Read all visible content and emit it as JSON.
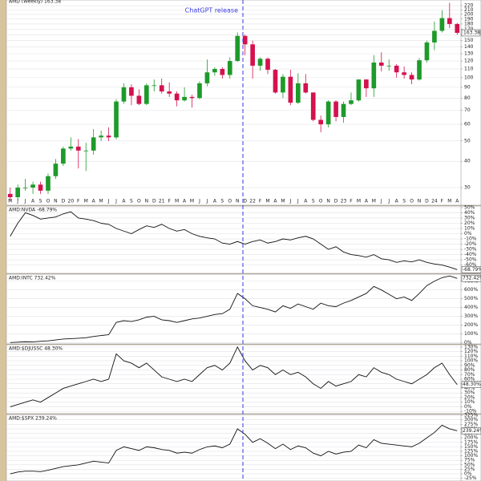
{
  "chart_data": [
    {
      "type": "candlestick",
      "title": "AMD (Weekly) 163.38",
      "annotation": "ChatGPT release",
      "categories": [
        "M",
        "J",
        "J",
        "A",
        "S",
        "O",
        "N",
        "D",
        "20",
        "F",
        "M",
        "A",
        "M",
        "J",
        "J",
        "A",
        "S",
        "O",
        "N",
        "D",
        "21",
        "F",
        "M",
        "A",
        "M",
        "J",
        "J",
        "A",
        "S",
        "O",
        "N",
        "D",
        "22",
        "F",
        "M",
        "A",
        "M",
        "J",
        "J",
        "A",
        "S",
        "O",
        "N",
        "D",
        "23",
        "F",
        "M",
        "A",
        "M",
        "J",
        "J",
        "A",
        "S",
        "O",
        "N",
        "D",
        "24",
        "F",
        "M",
        "A"
      ],
      "open": [
        28,
        27,
        30,
        30,
        31,
        29,
        34,
        39,
        46,
        47,
        45,
        45,
        52,
        53,
        52,
        77,
        90,
        82,
        75,
        92,
        92,
        86,
        84,
        78,
        81,
        80,
        94,
        106,
        110,
        103,
        120,
        158,
        144,
        114,
        123,
        109,
        85,
        101,
        76,
        94,
        85,
        63,
        60,
        77,
        65,
        75,
        78,
        98,
        89,
        118,
        114,
        114,
        106,
        103,
        98,
        121,
        147,
        167,
        192,
        180
      ],
      "high": [
        30,
        31,
        33,
        32,
        32,
        35,
        41,
        47,
        52,
        51,
        49,
        57,
        56,
        58,
        79,
        94,
        93,
        88,
        94,
        98,
        99,
        95,
        86,
        90,
        83,
        96,
        122,
        112,
        112,
        125,
        164,
        160,
        150,
        125,
        125,
        110,
        104,
        109,
        105,
        104,
        85,
        66,
        78,
        78,
        77,
        85,
        98,
        98,
        128,
        132,
        122,
        116,
        113,
        106,
        124,
        150,
        185,
        209,
        227,
        182
      ],
      "low": [
        26,
        26,
        29,
        28,
        28,
        28,
        33,
        38,
        45,
        37,
        36,
        43,
        50,
        50,
        51,
        75,
        74,
        74,
        74,
        86,
        84,
        81,
        73,
        77,
        72,
        79,
        91,
        102,
        99,
        99,
        119,
        128,
        99,
        108,
        104,
        84,
        80,
        74,
        75,
        84,
        62,
        55,
        58,
        62,
        61,
        74,
        77,
        81,
        81,
        107,
        108,
        100,
        99,
        93,
        97,
        118,
        135,
        164,
        172,
        160
      ],
      "close": [
        27,
        30,
        30,
        31,
        29,
        34,
        39,
        46,
        47,
        45,
        45,
        52,
        53,
        52,
        77,
        90,
        82,
        75,
        92,
        92,
        86,
        84,
        78,
        81,
        80,
        94,
        106,
        110,
        103,
        120,
        158,
        144,
        114,
        123,
        109,
        85,
        101,
        76,
        94,
        85,
        63,
        60,
        77,
        65,
        75,
        78,
        98,
        89,
        118,
        114,
        114,
        106,
        103,
        98,
        121,
        147,
        167,
        192,
        180,
        163.38
      ],
      "up_color": "#1e9a2a",
      "down_color": "#d4124e",
      "log_scale": true,
      "grid": true,
      "ylim": [
        27,
        228
      ],
      "yticks": [
        30,
        40,
        50,
        60,
        70,
        80,
        90,
        100,
        110,
        120,
        130,
        140,
        150,
        160,
        170,
        180,
        190,
        200,
        210,
        220
      ]
    },
    {
      "type": "line",
      "title": "AMD:NVDA -68.79%",
      "color": "#111111",
      "grid": true,
      "values": [
        -5,
        20,
        40,
        35,
        28,
        30,
        32,
        38,
        42,
        30,
        28,
        25,
        20,
        18,
        10,
        5,
        0,
        8,
        15,
        12,
        18,
        10,
        5,
        8,
        0,
        -5,
        -8,
        -10,
        -18,
        -20,
        -15,
        -20,
        -15,
        -12,
        -18,
        -15,
        -10,
        -12,
        -8,
        -5,
        -10,
        -20,
        -30,
        -25,
        -35,
        -40,
        -42,
        -45,
        -40,
        -48,
        -50,
        -55,
        -52,
        -54,
        -50,
        -55,
        -58,
        -60,
        -64,
        -68.79
      ],
      "value_labels": [
        null,
        null,
        null,
        null,
        null,
        null,
        null,
        null,
        null,
        null,
        null,
        null,
        null,
        null,
        null,
        null,
        null,
        null,
        null,
        null,
        null,
        null,
        null,
        null,
        null,
        null,
        null,
        null,
        null,
        null,
        null,
        null,
        null,
        null,
        null,
        null,
        null,
        null,
        null,
        null,
        null,
        null,
        null,
        null,
        null,
        null,
        null,
        null,
        null,
        null,
        null,
        null,
        null,
        null,
        null,
        null,
        null,
        null,
        null,
        "-68.79%"
      ],
      "ylim": [
        -76,
        53
      ],
      "yticks": [
        {
          "value": 50,
          "label": "50%"
        },
        {
          "value": 40,
          "label": "40%"
        },
        {
          "value": 30,
          "label": "30%"
        },
        {
          "value": 20,
          "label": "20%"
        },
        {
          "value": 10,
          "label": "10%"
        },
        {
          "value": 0,
          "label": "0%"
        },
        {
          "value": -10,
          "label": "-10%"
        },
        {
          "value": -20,
          "label": "-20%"
        },
        {
          "value": -30,
          "label": "-30%"
        },
        {
          "value": -40,
          "label": "-40%"
        },
        {
          "value": -50,
          "label": "-50%"
        },
        {
          "value": -60,
          "label": "-60%"
        }
      ]
    },
    {
      "type": "line",
      "title": "AMD:INTC 732.42%",
      "color": "#111111",
      "grid": true,
      "values": [
        0,
        5,
        10,
        8,
        15,
        20,
        30,
        40,
        45,
        50,
        55,
        70,
        80,
        90,
        230,
        250,
        240,
        260,
        290,
        300,
        260,
        250,
        230,
        250,
        270,
        280,
        300,
        320,
        330,
        380,
        560,
        500,
        420,
        400,
        380,
        350,
        420,
        390,
        440,
        410,
        380,
        450,
        420,
        410,
        450,
        480,
        520,
        560,
        640,
        600,
        550,
        500,
        520,
        480,
        560,
        650,
        700,
        740,
        760,
        732.42
      ],
      "value_labels": [
        null,
        null,
        null,
        null,
        null,
        null,
        null,
        null,
        null,
        null,
        null,
        null,
        null,
        null,
        null,
        null,
        null,
        null,
        null,
        null,
        null,
        null,
        null,
        null,
        null,
        null,
        null,
        null,
        null,
        null,
        null,
        null,
        null,
        null,
        null,
        null,
        null,
        null,
        null,
        null,
        null,
        null,
        null,
        null,
        null,
        null,
        null,
        null,
        null,
        null,
        null,
        null,
        null,
        null,
        null,
        null,
        null,
        null,
        null,
        "732.42%"
      ],
      "ylim": [
        -15,
        780
      ],
      "yticks": [
        {
          "value": 0,
          "label": "0%"
        },
        {
          "value": 100,
          "label": "100%"
        },
        {
          "value": 200,
          "label": "200%"
        },
        {
          "value": 300,
          "label": "300%"
        },
        {
          "value": 400,
          "label": "400%"
        },
        {
          "value": 500,
          "label": "500%"
        },
        {
          "value": 600,
          "label": "600%"
        },
        {
          "value": 700,
          "label": "700%"
        }
      ]
    },
    {
      "type": "line",
      "title": "AMD:$DJUSSC 48.30%",
      "color": "#111111",
      "grid": true,
      "values": [
        0,
        5,
        10,
        15,
        10,
        20,
        30,
        40,
        45,
        50,
        55,
        60,
        55,
        60,
        115,
        100,
        95,
        85,
        95,
        80,
        65,
        60,
        55,
        60,
        55,
        70,
        85,
        90,
        80,
        95,
        130,
        100,
        80,
        90,
        85,
        70,
        80,
        70,
        75,
        65,
        50,
        40,
        55,
        45,
        50,
        55,
        70,
        65,
        85,
        75,
        70,
        60,
        55,
        50,
        60,
        70,
        85,
        95,
        70,
        48.3
      ],
      "value_labels": [
        null,
        null,
        null,
        null,
        null,
        null,
        null,
        null,
        null,
        null,
        null,
        null,
        null,
        null,
        null,
        null,
        null,
        null,
        null,
        null,
        null,
        null,
        null,
        null,
        null,
        null,
        null,
        null,
        null,
        null,
        null,
        null,
        null,
        null,
        null,
        null,
        null,
        null,
        null,
        null,
        null,
        null,
        null,
        null,
        null,
        null,
        null,
        null,
        null,
        null,
        null,
        null,
        null,
        null,
        null,
        null,
        null,
        null,
        null,
        "48.30%"
      ],
      "ylim": [
        -15,
        135
      ],
      "yticks": [
        {
          "value": -10,
          "label": "-10%"
        },
        {
          "value": 0,
          "label": "0%"
        },
        {
          "value": 10,
          "label": "10%"
        },
        {
          "value": 20,
          "label": "20%"
        },
        {
          "value": 30,
          "label": "30%"
        },
        {
          "value": 40,
          "label": "40%"
        },
        {
          "value": 50,
          "label": "50%"
        },
        {
          "value": 60,
          "label": "60%"
        },
        {
          "value": 70,
          "label": "70%"
        },
        {
          "value": 80,
          "label": "80%"
        },
        {
          "value": 90,
          "label": "90%"
        },
        {
          "value": 100,
          "label": "100%"
        },
        {
          "value": 110,
          "label": "110%"
        },
        {
          "value": 120,
          "label": "120%"
        },
        {
          "value": 130,
          "label": "130%"
        }
      ]
    },
    {
      "type": "line",
      "title": "AMD:$SPX 239.24%",
      "color": "#111111",
      "grid": true,
      "values": [
        0,
        10,
        15,
        15,
        12,
        20,
        30,
        40,
        45,
        50,
        60,
        70,
        65,
        60,
        130,
        150,
        140,
        130,
        150,
        145,
        135,
        130,
        115,
        120,
        115,
        135,
        150,
        155,
        145,
        165,
        250,
        220,
        175,
        195,
        170,
        140,
        165,
        135,
        155,
        145,
        115,
        100,
        125,
        110,
        120,
        125,
        160,
        145,
        190,
        170,
        165,
        160,
        155,
        150,
        170,
        200,
        230,
        270,
        250,
        239.24
      ],
      "value_labels": [
        null,
        null,
        null,
        null,
        null,
        null,
        null,
        null,
        null,
        null,
        null,
        null,
        null,
        null,
        null,
        null,
        null,
        null,
        null,
        null,
        null,
        null,
        null,
        null,
        null,
        null,
        null,
        null,
        null,
        null,
        null,
        null,
        null,
        null,
        null,
        null,
        null,
        null,
        null,
        null,
        null,
        null,
        null,
        null,
        null,
        null,
        null,
        null,
        null,
        null,
        null,
        null,
        null,
        null,
        null,
        null,
        null,
        null,
        null,
        "239.24%"
      ],
      "ylim": [
        -40,
        330
      ],
      "yticks": [
        {
          "value": -25,
          "label": "-25%"
        },
        {
          "value": 0,
          "label": "0%"
        },
        {
          "value": 25,
          "label": "25%"
        },
        {
          "value": 50,
          "label": "50%"
        },
        {
          "value": 75,
          "label": "75%"
        },
        {
          "value": 100,
          "label": "100%"
        },
        {
          "value": 125,
          "label": "125%"
        },
        {
          "value": 150,
          "label": "150%"
        },
        {
          "value": 175,
          "label": "175%"
        },
        {
          "value": 200,
          "label": "200%"
        },
        {
          "value": 225,
          "label": "225%"
        },
        {
          "value": 250,
          "label": "250%"
        },
        {
          "value": 275,
          "label": "275%"
        },
        {
          "value": 300,
          "label": "300%"
        },
        {
          "value": 325,
          "label": "325%"
        }
      ]
    }
  ]
}
